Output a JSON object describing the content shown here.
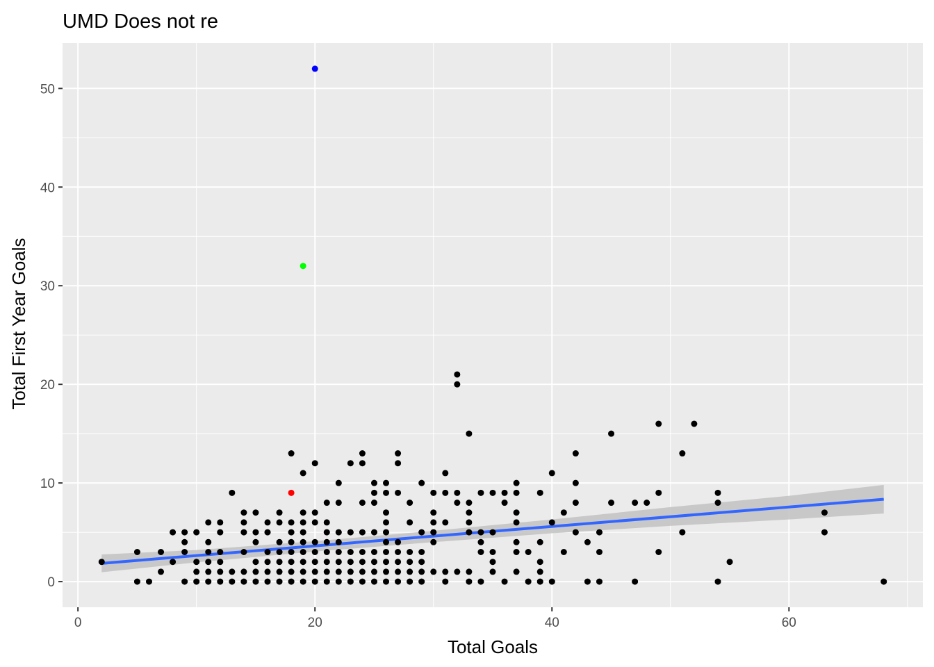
{
  "chart_data": {
    "type": "scatter",
    "title": "UMD Does not re",
    "xlabel": "Total Goals",
    "ylabel": "Total First Year Goals",
    "xlim": [
      -1.3,
      71.3
    ],
    "ylim": [
      -2.6,
      54.6
    ],
    "x_ticks": [
      0,
      20,
      40,
      60
    ],
    "y_ticks": [
      0,
      10,
      20,
      30,
      40,
      50
    ],
    "grid": true,
    "legend": "none",
    "colors": {
      "panel": "#ebebeb",
      "grid": "#ffffff",
      "point": "#000000",
      "trend": "#3366ff",
      "band": "#c2c2c2",
      "tick": "#333333"
    },
    "points": [
      {
        "x": 2,
        "y": 2
      },
      {
        "x": 5,
        "y": 3
      },
      {
        "x": 5,
        "y": 0
      },
      {
        "x": 6,
        "y": 0
      },
      {
        "x": 7,
        "y": 3
      },
      {
        "x": 7,
        "y": 1
      },
      {
        "x": 8,
        "y": 5
      },
      {
        "x": 8,
        "y": 2
      },
      {
        "x": 9,
        "y": 5
      },
      {
        "x": 9,
        "y": 4
      },
      {
        "x": 9,
        "y": 3
      },
      {
        "x": 9,
        "y": 0
      },
      {
        "x": 10,
        "y": 5
      },
      {
        "x": 10,
        "y": 2
      },
      {
        "x": 10,
        "y": 1
      },
      {
        "x": 10,
        "y": 0
      },
      {
        "x": 11,
        "y": 6
      },
      {
        "x": 11,
        "y": 4
      },
      {
        "x": 11,
        "y": 3
      },
      {
        "x": 11,
        "y": 2
      },
      {
        "x": 11,
        "y": 1
      },
      {
        "x": 11,
        "y": 0
      },
      {
        "x": 12,
        "y": 6
      },
      {
        "x": 12,
        "y": 5
      },
      {
        "x": 12,
        "y": 3
      },
      {
        "x": 12,
        "y": 2
      },
      {
        "x": 12,
        "y": 1
      },
      {
        "x": 12,
        "y": 0
      },
      {
        "x": 13,
        "y": 9
      },
      {
        "x": 13,
        "y": 1
      },
      {
        "x": 13,
        "y": 0
      },
      {
        "x": 14,
        "y": 7
      },
      {
        "x": 14,
        "y": 6
      },
      {
        "x": 14,
        "y": 5
      },
      {
        "x": 14,
        "y": 3
      },
      {
        "x": 14,
        "y": 1
      },
      {
        "x": 14,
        "y": 0
      },
      {
        "x": 15,
        "y": 7
      },
      {
        "x": 15,
        "y": 5
      },
      {
        "x": 15,
        "y": 4
      },
      {
        "x": 15,
        "y": 2
      },
      {
        "x": 15,
        "y": 1
      },
      {
        "x": 15,
        "y": 0
      },
      {
        "x": 16,
        "y": 6
      },
      {
        "x": 16,
        "y": 5
      },
      {
        "x": 16,
        "y": 3
      },
      {
        "x": 16,
        "y": 2
      },
      {
        "x": 16,
        "y": 1
      },
      {
        "x": 16,
        "y": 0
      },
      {
        "x": 17,
        "y": 7
      },
      {
        "x": 17,
        "y": 6
      },
      {
        "x": 17,
        "y": 4
      },
      {
        "x": 17,
        "y": 3
      },
      {
        "x": 17,
        "y": 2
      },
      {
        "x": 17,
        "y": 1
      },
      {
        "x": 17,
        "y": 0
      },
      {
        "x": 18,
        "y": 13
      },
      {
        "x": 18,
        "y": 6
      },
      {
        "x": 18,
        "y": 5
      },
      {
        "x": 18,
        "y": 4
      },
      {
        "x": 18,
        "y": 3
      },
      {
        "x": 18,
        "y": 2
      },
      {
        "x": 18,
        "y": 1
      },
      {
        "x": 18,
        "y": 0
      },
      {
        "x": 19,
        "y": 11
      },
      {
        "x": 19,
        "y": 7
      },
      {
        "x": 19,
        "y": 6
      },
      {
        "x": 19,
        "y": 5
      },
      {
        "x": 19,
        "y": 4
      },
      {
        "x": 19,
        "y": 3
      },
      {
        "x": 19,
        "y": 2
      },
      {
        "x": 19,
        "y": 1
      },
      {
        "x": 19,
        "y": 0
      },
      {
        "x": 20,
        "y": 12
      },
      {
        "x": 20,
        "y": 7
      },
      {
        "x": 20,
        "y": 6
      },
      {
        "x": 20,
        "y": 4
      },
      {
        "x": 20,
        "y": 3
      },
      {
        "x": 20,
        "y": 2
      },
      {
        "x": 20,
        "y": 1
      },
      {
        "x": 20,
        "y": 0
      },
      {
        "x": 21,
        "y": 8
      },
      {
        "x": 21,
        "y": 6
      },
      {
        "x": 21,
        "y": 5
      },
      {
        "x": 21,
        "y": 4
      },
      {
        "x": 21,
        "y": 3
      },
      {
        "x": 21,
        "y": 2
      },
      {
        "x": 21,
        "y": 1
      },
      {
        "x": 21,
        "y": 0
      },
      {
        "x": 22,
        "y": 10
      },
      {
        "x": 22,
        "y": 8
      },
      {
        "x": 22,
        "y": 5
      },
      {
        "x": 22,
        "y": 4
      },
      {
        "x": 22,
        "y": 3
      },
      {
        "x": 22,
        "y": 2
      },
      {
        "x": 22,
        "y": 1
      },
      {
        "x": 22,
        "y": 0
      },
      {
        "x": 23,
        "y": 12
      },
      {
        "x": 23,
        "y": 5
      },
      {
        "x": 23,
        "y": 3
      },
      {
        "x": 23,
        "y": 2
      },
      {
        "x": 23,
        "y": 1
      },
      {
        "x": 23,
        "y": 0
      },
      {
        "x": 24,
        "y": 13
      },
      {
        "x": 24,
        "y": 12
      },
      {
        "x": 24,
        "y": 8
      },
      {
        "x": 24,
        "y": 5
      },
      {
        "x": 24,
        "y": 3
      },
      {
        "x": 24,
        "y": 2
      },
      {
        "x": 24,
        "y": 1
      },
      {
        "x": 24,
        "y": 0
      },
      {
        "x": 25,
        "y": 10
      },
      {
        "x": 25,
        "y": 9
      },
      {
        "x": 25,
        "y": 8
      },
      {
        "x": 25,
        "y": 5
      },
      {
        "x": 25,
        "y": 3
      },
      {
        "x": 25,
        "y": 2
      },
      {
        "x": 25,
        "y": 1
      },
      {
        "x": 25,
        "y": 0
      },
      {
        "x": 26,
        "y": 10
      },
      {
        "x": 26,
        "y": 9
      },
      {
        "x": 26,
        "y": 7
      },
      {
        "x": 26,
        "y": 6
      },
      {
        "x": 26,
        "y": 5
      },
      {
        "x": 26,
        "y": 4
      },
      {
        "x": 26,
        "y": 3
      },
      {
        "x": 26,
        "y": 2
      },
      {
        "x": 26,
        "y": 1
      },
      {
        "x": 26,
        "y": 0
      },
      {
        "x": 27,
        "y": 13
      },
      {
        "x": 27,
        "y": 12
      },
      {
        "x": 27,
        "y": 9
      },
      {
        "x": 27,
        "y": 4
      },
      {
        "x": 27,
        "y": 3
      },
      {
        "x": 27,
        "y": 2
      },
      {
        "x": 27,
        "y": 1
      },
      {
        "x": 27,
        "y": 0
      },
      {
        "x": 28,
        "y": 8
      },
      {
        "x": 28,
        "y": 6
      },
      {
        "x": 28,
        "y": 3
      },
      {
        "x": 28,
        "y": 2
      },
      {
        "x": 28,
        "y": 1
      },
      {
        "x": 28,
        "y": 0
      },
      {
        "x": 29,
        "y": 10
      },
      {
        "x": 29,
        "y": 5
      },
      {
        "x": 29,
        "y": 3
      },
      {
        "x": 29,
        "y": 2
      },
      {
        "x": 29,
        "y": 1
      },
      {
        "x": 29,
        "y": 0
      },
      {
        "x": 30,
        "y": 9
      },
      {
        "x": 30,
        "y": 7
      },
      {
        "x": 30,
        "y": 6
      },
      {
        "x": 30,
        "y": 5
      },
      {
        "x": 30,
        "y": 4
      },
      {
        "x": 30,
        "y": 1
      },
      {
        "x": 31,
        "y": 11
      },
      {
        "x": 31,
        "y": 9
      },
      {
        "x": 31,
        "y": 6
      },
      {
        "x": 31,
        "y": 1
      },
      {
        "x": 31,
        "y": 0
      },
      {
        "x": 32,
        "y": 21
      },
      {
        "x": 32,
        "y": 20
      },
      {
        "x": 32,
        "y": 9
      },
      {
        "x": 32,
        "y": 8
      },
      {
        "x": 32,
        "y": 1
      },
      {
        "x": 33,
        "y": 15
      },
      {
        "x": 33,
        "y": 8
      },
      {
        "x": 33,
        "y": 7
      },
      {
        "x": 33,
        "y": 6
      },
      {
        "x": 33,
        "y": 5
      },
      {
        "x": 33,
        "y": 1
      },
      {
        "x": 33,
        "y": 0
      },
      {
        "x": 34,
        "y": 9
      },
      {
        "x": 34,
        "y": 5
      },
      {
        "x": 34,
        "y": 4
      },
      {
        "x": 34,
        "y": 3
      },
      {
        "x": 34,
        "y": 0
      },
      {
        "x": 35,
        "y": 9
      },
      {
        "x": 35,
        "y": 5
      },
      {
        "x": 35,
        "y": 3
      },
      {
        "x": 35,
        "y": 2
      },
      {
        "x": 35,
        "y": 1
      },
      {
        "x": 36,
        "y": 9
      },
      {
        "x": 36,
        "y": 8
      },
      {
        "x": 36,
        "y": 0
      },
      {
        "x": 37,
        "y": 10
      },
      {
        "x": 37,
        "y": 9
      },
      {
        "x": 37,
        "y": 7
      },
      {
        "x": 37,
        "y": 6
      },
      {
        "x": 37,
        "y": 4
      },
      {
        "x": 37,
        "y": 3
      },
      {
        "x": 37,
        "y": 1
      },
      {
        "x": 38,
        "y": 3
      },
      {
        "x": 38,
        "y": 0
      },
      {
        "x": 39,
        "y": 9
      },
      {
        "x": 39,
        "y": 4
      },
      {
        "x": 39,
        "y": 2
      },
      {
        "x": 39,
        "y": 1
      },
      {
        "x": 39,
        "y": 0
      },
      {
        "x": 40,
        "y": 11
      },
      {
        "x": 40,
        "y": 6
      },
      {
        "x": 40,
        "y": 0
      },
      {
        "x": 41,
        "y": 7
      },
      {
        "x": 41,
        "y": 3
      },
      {
        "x": 42,
        "y": 13
      },
      {
        "x": 42,
        "y": 10
      },
      {
        "x": 42,
        "y": 8
      },
      {
        "x": 42,
        "y": 5
      },
      {
        "x": 43,
        "y": 4
      },
      {
        "x": 43,
        "y": 0
      },
      {
        "x": 44,
        "y": 5
      },
      {
        "x": 44,
        "y": 3
      },
      {
        "x": 44,
        "y": 0
      },
      {
        "x": 45,
        "y": 15
      },
      {
        "x": 45,
        "y": 8
      },
      {
        "x": 47,
        "y": 8
      },
      {
        "x": 47,
        "y": 0
      },
      {
        "x": 48,
        "y": 8
      },
      {
        "x": 49,
        "y": 16
      },
      {
        "x": 49,
        "y": 9
      },
      {
        "x": 49,
        "y": 3
      },
      {
        "x": 51,
        "y": 13
      },
      {
        "x": 51,
        "y": 5
      },
      {
        "x": 52,
        "y": 16
      },
      {
        "x": 54,
        "y": 9
      },
      {
        "x": 54,
        "y": 8
      },
      {
        "x": 54,
        "y": 0
      },
      {
        "x": 55,
        "y": 2
      },
      {
        "x": 63,
        "y": 7
      },
      {
        "x": 63,
        "y": 5
      },
      {
        "x": 68,
        "y": 0
      }
    ],
    "highlighted_points": [
      {
        "x": 20,
        "y": 52,
        "color": "#0000ff"
      },
      {
        "x": 19,
        "y": 32,
        "color": "#00ff00"
      },
      {
        "x": 18,
        "y": 9,
        "color": "#ff0000"
      }
    ],
    "trend_line": {
      "method": "linear",
      "x": [
        2,
        68
      ],
      "y": [
        1.85,
        8.35
      ],
      "band_lower": [
        0.95,
        6.9
      ],
      "band_upper": [
        2.75,
        9.8
      ],
      "band_points": [
        {
          "x": 2,
          "lo": 0.95,
          "hi": 2.75
        },
        {
          "x": 10,
          "lo": 1.95,
          "hi": 3.2
        },
        {
          "x": 20,
          "lo": 3.05,
          "hi": 4.1
        },
        {
          "x": 30,
          "lo": 4.0,
          "hi": 5.15
        },
        {
          "x": 40,
          "lo": 4.9,
          "hi": 6.3
        },
        {
          "x": 50,
          "lo": 5.65,
          "hi": 7.55
        },
        {
          "x": 60,
          "lo": 6.3,
          "hi": 8.7
        },
        {
          "x": 68,
          "lo": 6.9,
          "hi": 9.8
        }
      ]
    }
  }
}
